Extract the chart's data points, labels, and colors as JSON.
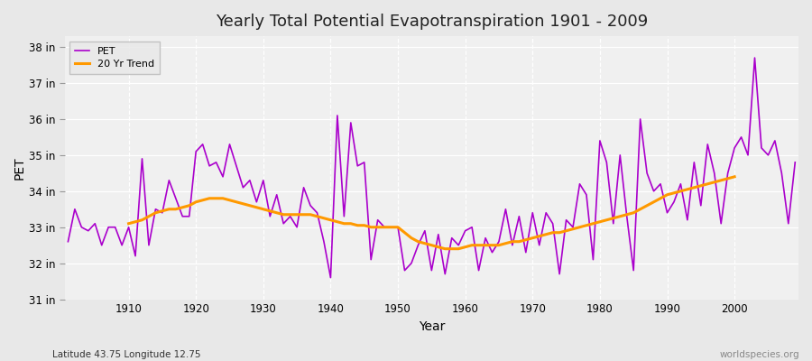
{
  "title": "Yearly Total Potential Evapotranspiration 1901 - 2009",
  "xlabel": "Year",
  "ylabel": "PET",
  "subtitle": "Latitude 43.75 Longitude 12.75",
  "watermark": "worldspecies.org",
  "ylim": [
    31,
    38.3
  ],
  "yticks": [
    31,
    32,
    33,
    34,
    35,
    36,
    37,
    38
  ],
  "ytick_labels": [
    "31 in",
    "32 in",
    "33 in",
    "34 in",
    "35 in",
    "36 in",
    "37 in",
    "38 in"
  ],
  "xlim": [
    1900.5,
    2009.5
  ],
  "xticks": [
    1910,
    1920,
    1930,
    1940,
    1950,
    1960,
    1970,
    1980,
    1990,
    2000
  ],
  "pet_color": "#aa00cc",
  "trend_color": "#ff9900",
  "fig_bg_color": "#e8e8e8",
  "plot_bg_color": "#f0f0f0",
  "grid_color": "#ffffff",
  "years": [
    1901,
    1902,
    1903,
    1904,
    1905,
    1906,
    1907,
    1908,
    1909,
    1910,
    1911,
    1912,
    1913,
    1914,
    1915,
    1916,
    1917,
    1918,
    1919,
    1920,
    1921,
    1922,
    1923,
    1924,
    1925,
    1926,
    1927,
    1928,
    1929,
    1930,
    1931,
    1932,
    1933,
    1934,
    1935,
    1936,
    1937,
    1938,
    1939,
    1940,
    1941,
    1942,
    1943,
    1944,
    1945,
    1946,
    1947,
    1948,
    1949,
    1950,
    1951,
    1952,
    1953,
    1954,
    1955,
    1956,
    1957,
    1958,
    1959,
    1960,
    1961,
    1962,
    1963,
    1964,
    1965,
    1966,
    1967,
    1968,
    1969,
    1970,
    1971,
    1972,
    1973,
    1974,
    1975,
    1976,
    1977,
    1978,
    1979,
    1980,
    1981,
    1982,
    1983,
    1984,
    1985,
    1986,
    1987,
    1988,
    1989,
    1990,
    1991,
    1992,
    1993,
    1994,
    1995,
    1996,
    1997,
    1998,
    1999,
    2000,
    2001,
    2002,
    2003,
    2004,
    2005,
    2006,
    2007,
    2008,
    2009
  ],
  "pet_values": [
    32.6,
    33.5,
    33.0,
    32.9,
    33.1,
    32.5,
    33.0,
    33.0,
    32.5,
    33.0,
    32.2,
    34.9,
    32.5,
    33.5,
    33.4,
    34.3,
    33.8,
    33.3,
    33.3,
    35.1,
    35.3,
    34.7,
    34.8,
    34.4,
    35.3,
    34.7,
    34.1,
    34.3,
    33.7,
    34.3,
    33.3,
    33.9,
    33.1,
    33.3,
    33.0,
    34.1,
    33.6,
    33.4,
    32.6,
    31.6,
    36.1,
    33.3,
    35.9,
    34.7,
    34.8,
    32.1,
    33.2,
    33.0,
    33.0,
    33.0,
    31.8,
    32.0,
    32.5,
    32.9,
    31.8,
    32.8,
    31.7,
    32.7,
    32.5,
    32.9,
    33.0,
    31.8,
    32.7,
    32.3,
    32.6,
    33.5,
    32.5,
    33.3,
    32.3,
    33.4,
    32.5,
    33.4,
    33.1,
    31.7,
    33.2,
    33.0,
    34.2,
    33.9,
    32.1,
    35.4,
    34.8,
    33.1,
    35.0,
    33.3,
    31.8,
    36.0,
    34.5,
    34.0,
    34.2,
    33.4,
    33.7,
    34.2,
    33.2,
    34.8,
    33.6,
    35.3,
    34.5,
    33.1,
    34.5,
    35.2,
    35.5,
    35.0,
    37.7,
    35.2,
    35.0,
    35.4,
    34.5,
    33.1,
    34.8
  ],
  "trend_years": [
    1910,
    1911,
    1912,
    1913,
    1914,
    1915,
    1916,
    1917,
    1918,
    1919,
    1920,
    1921,
    1922,
    1923,
    1924,
    1925,
    1926,
    1927,
    1928,
    1929,
    1930,
    1931,
    1932,
    1933,
    1934,
    1935,
    1936,
    1937,
    1938,
    1939,
    1940,
    1941,
    1942,
    1943,
    1944,
    1945,
    1946,
    1947,
    1948,
    1949,
    1950,
    1951,
    1952,
    1953,
    1954,
    1955,
    1956,
    1957,
    1958,
    1959,
    1960,
    1961,
    1962,
    1963,
    1964,
    1965,
    1966,
    1967,
    1968,
    1969,
    1970,
    1971,
    1972,
    1973,
    1974,
    1975,
    1976,
    1977,
    1978,
    1979,
    1980,
    1981,
    1982,
    1983,
    1984,
    1985,
    1986,
    1987,
    1988,
    1989,
    1990,
    1991,
    1992,
    1993,
    1994,
    1995,
    1996,
    1997,
    1998,
    1999,
    2000
  ],
  "trend_values": [
    33.1,
    33.15,
    33.2,
    33.3,
    33.4,
    33.45,
    33.5,
    33.5,
    33.55,
    33.6,
    33.7,
    33.75,
    33.8,
    33.8,
    33.8,
    33.75,
    33.7,
    33.65,
    33.6,
    33.55,
    33.5,
    33.45,
    33.4,
    33.35,
    33.35,
    33.35,
    33.35,
    33.35,
    33.3,
    33.25,
    33.2,
    33.15,
    33.1,
    33.1,
    33.05,
    33.05,
    33.0,
    33.0,
    33.0,
    33.0,
    33.0,
    32.85,
    32.7,
    32.6,
    32.55,
    32.5,
    32.45,
    32.4,
    32.4,
    32.4,
    32.45,
    32.5,
    32.5,
    32.5,
    32.5,
    32.5,
    32.55,
    32.6,
    32.6,
    32.65,
    32.7,
    32.75,
    32.8,
    32.85,
    32.85,
    32.9,
    32.95,
    33.0,
    33.05,
    33.1,
    33.15,
    33.2,
    33.25,
    33.3,
    33.35,
    33.4,
    33.5,
    33.6,
    33.7,
    33.8,
    33.9,
    33.95,
    34.0,
    34.05,
    34.1,
    34.15,
    34.2,
    34.25,
    34.3,
    34.35,
    34.4
  ],
  "legend_pet_label": "PET",
  "legend_trend_label": "20 Yr Trend"
}
